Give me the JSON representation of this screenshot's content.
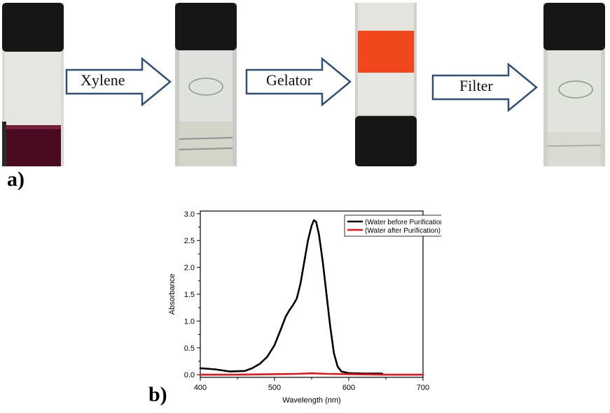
{
  "figure": {
    "panel_a_label": "a)",
    "panel_b_label": "b)"
  },
  "steps": [
    {
      "arrow_label": "Xylene"
    },
    {
      "arrow_label": "Gelator"
    },
    {
      "arrow_label": "Filter"
    }
  ],
  "vials": [
    {
      "state": "dyed-water",
      "cap_color": "#151515",
      "liquid_color": "#4a0b22"
    },
    {
      "state": "two-phase-with-xylene",
      "cap_color": "#151515",
      "liquid_color": "#d8dccf"
    },
    {
      "state": "inverted-gel",
      "cap_color": "#151515",
      "gel_color": "#f0471c"
    },
    {
      "state": "filtered-clear-water",
      "cap_color": "#151515",
      "liquid_color": "#dfe3da"
    }
  ],
  "chart_data": {
    "type": "line",
    "xlabel": "Wavelength (nm)",
    "ylabel": "Absorbance",
    "xlim": [
      400,
      700
    ],
    "ylim": [
      -0.05,
      3.05
    ],
    "x_ticks": [
      400,
      500,
      600,
      700
    ],
    "y_ticks": [
      "0.0",
      "0.5",
      "1.0",
      "1.5",
      "2.0",
      "2.5",
      "3.0"
    ],
    "legend_position": "top-right",
    "series": [
      {
        "name": "(Water before Purification)",
        "color": "#000000",
        "x": [
          400,
          420,
          440,
          460,
          470,
          480,
          490,
          500,
          510,
          515,
          520,
          525,
          530,
          535,
          540,
          545,
          550,
          553,
          556,
          560,
          565,
          570,
          575,
          580,
          585,
          590,
          600,
          620,
          645
        ],
        "y": [
          0.12,
          0.1,
          0.06,
          0.07,
          0.12,
          0.2,
          0.33,
          0.55,
          0.9,
          1.08,
          1.2,
          1.3,
          1.42,
          1.7,
          2.1,
          2.5,
          2.78,
          2.88,
          2.85,
          2.6,
          2.1,
          1.5,
          0.9,
          0.4,
          0.15,
          0.06,
          0.03,
          0.02,
          0.02
        ]
      },
      {
        "name": "(Water after Purification)",
        "color": "#e8141b",
        "x": [
          400,
          450,
          500,
          530,
          550,
          570,
          600,
          650,
          700
        ],
        "y": [
          0.0,
          0.0,
          0.01,
          0.015,
          0.025,
          0.015,
          0.01,
          0.0,
          0.0
        ]
      }
    ]
  }
}
